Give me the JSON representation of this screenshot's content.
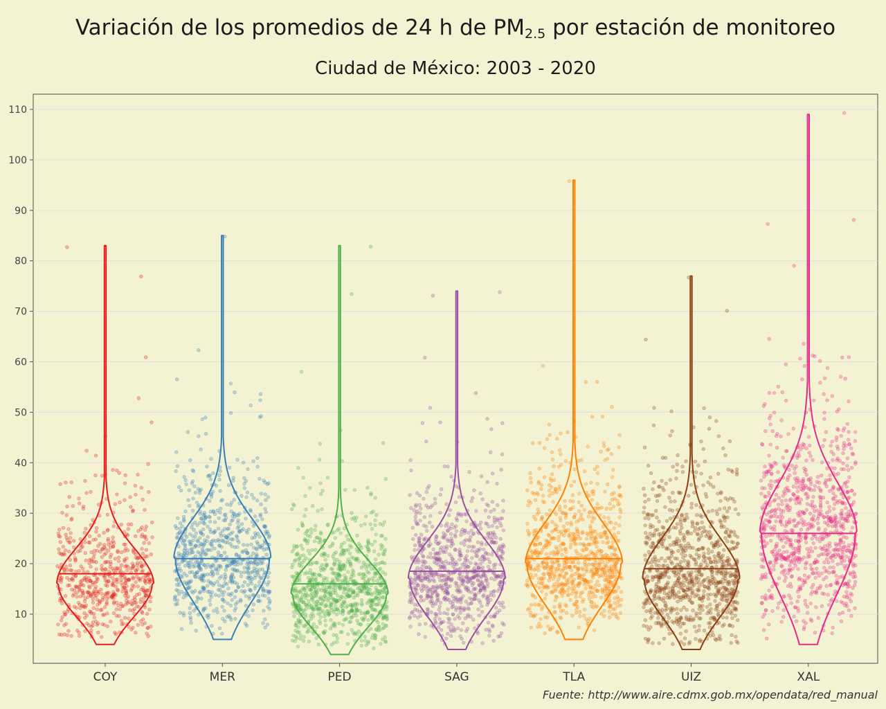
{
  "title_main": "Variación de los promedios de 24 h de PM",
  "title_sub": "2.5",
  "title_rest": " por estación de monitoreo",
  "subtitle": "Ciudad de México: 2003 - 2020",
  "source": "Fuente: http://www.aire.cdmx.gob.mx/opendata/red_manual",
  "chart_data": {
    "type": "violin",
    "title": "Variación de los promedios de 24 h de PM2.5 por estación de monitoreo",
    "subtitle": "Ciudad de México: 2003 - 2020",
    "xlabel": "",
    "ylabel": "",
    "ylim": [
      1,
      112
    ],
    "yticks": [
      10,
      20,
      30,
      40,
      50,
      60,
      70,
      80,
      90,
      100,
      110
    ],
    "grid": true,
    "categories": [
      "COY",
      "MER",
      "PED",
      "SAG",
      "TLA",
      "UIZ",
      "XAL"
    ],
    "series": [
      {
        "name": "COY",
        "color": "#e41a1c",
        "min": 4,
        "max": 83,
        "mode": 16,
        "median": 18,
        "spread": 7,
        "tail": 0.45,
        "n": 620,
        "outliers": [
          [
            -0.8,
            82.7
          ],
          [
            0.75,
            76.9
          ],
          [
            0.85,
            60.9
          ],
          [
            0.7,
            52.8
          ]
        ]
      },
      {
        "name": "MER",
        "color": "#377eb8",
        "min": 5,
        "max": 85,
        "mode": 21,
        "median": 21,
        "spread": 8,
        "tail": 0.5,
        "n": 760,
        "outliers": [
          [
            0.05,
            84.8
          ],
          [
            -0.5,
            62.3
          ],
          [
            0.8,
            53.6
          ]
        ]
      },
      {
        "name": "PED",
        "color": "#4daf4a",
        "min": 2,
        "max": 83,
        "mode": 14,
        "median": 16,
        "spread": 6.5,
        "tail": 0.6,
        "n": 900,
        "outliers": [
          [
            0.65,
            82.8
          ],
          [
            0.25,
            73.4
          ],
          [
            -0.8,
            58.0
          ]
        ]
      },
      {
        "name": "SAG",
        "color": "#984ea3",
        "min": 3,
        "max": 74,
        "mode": 17,
        "median": 18.5,
        "spread": 7.5,
        "tail": 0.5,
        "n": 850,
        "outliers": [
          [
            0.9,
            73.8
          ],
          [
            -0.5,
            73.1
          ],
          [
            0.4,
            53.8
          ]
        ]
      },
      {
        "name": "TLA",
        "color": "#ff7f00",
        "min": 5,
        "max": 96,
        "mode": 20,
        "median": 21,
        "spread": 8,
        "tail": 0.55,
        "n": 880,
        "outliers": [
          [
            -0.1,
            95.8
          ],
          [
            0.25,
            56.0
          ],
          [
            -0.65,
            59.2
          ]
        ]
      },
      {
        "name": "UIZ",
        "color": "#8b3e14",
        "min": 3,
        "max": 77,
        "mode": 17,
        "median": 19,
        "spread": 8,
        "tail": 0.6,
        "n": 950,
        "outliers": [
          [
            -0.05,
            76.7
          ],
          [
            0.75,
            70.1
          ],
          [
            -0.95,
            64.4
          ]
        ]
      },
      {
        "name": "XAL",
        "color": "#e7298a",
        "min": 4,
        "max": 109,
        "mode": 26,
        "median": 26,
        "spread": 10,
        "tail": 0.7,
        "n": 950,
        "outliers": [
          [
            0.75,
            109.3
          ],
          [
            0.95,
            88.1
          ],
          [
            -0.85,
            87.3
          ],
          [
            -0.3,
            79.0
          ]
        ]
      }
    ]
  }
}
